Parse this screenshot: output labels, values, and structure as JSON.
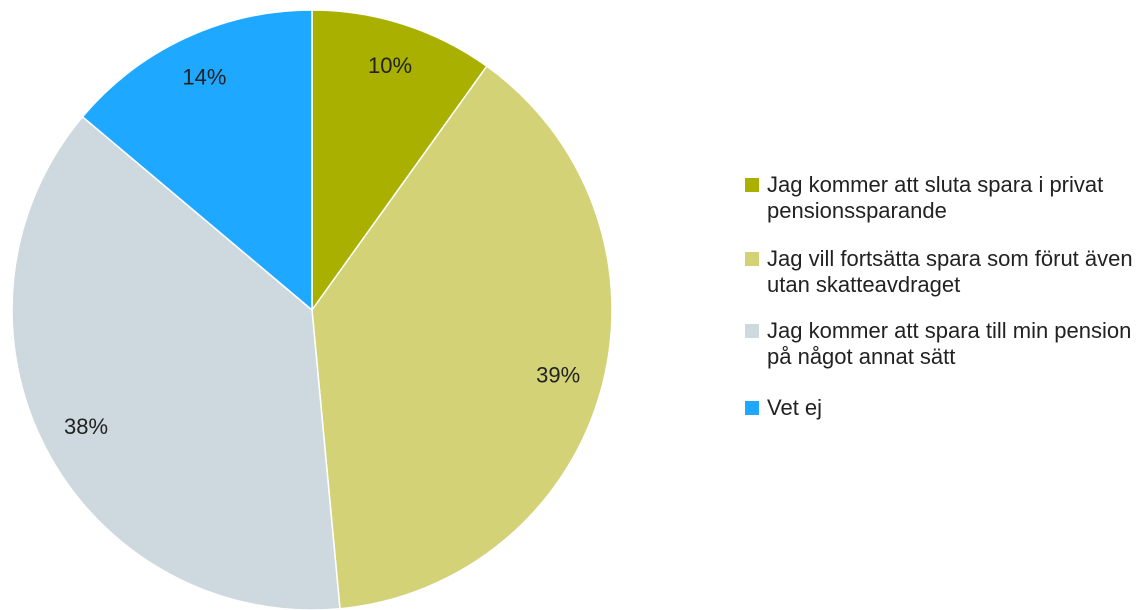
{
  "chart_data": {
    "type": "pie",
    "categories": [
      "Jag kommer att sluta spara i privat pensionssparande",
      "Jag vill fortsätta spara som förut även utan skatteavdraget",
      "Jag kommer att spara till min pension på något annat sätt",
      "Vet ej"
    ],
    "values": [
      10,
      39,
      38,
      14
    ],
    "value_labels": [
      "10%",
      "39%",
      "38%",
      "14%"
    ],
    "colors": [
      "#a9b000",
      "#d3d277",
      "#cdd8df",
      "#1fa8ff"
    ],
    "legend": "right"
  }
}
